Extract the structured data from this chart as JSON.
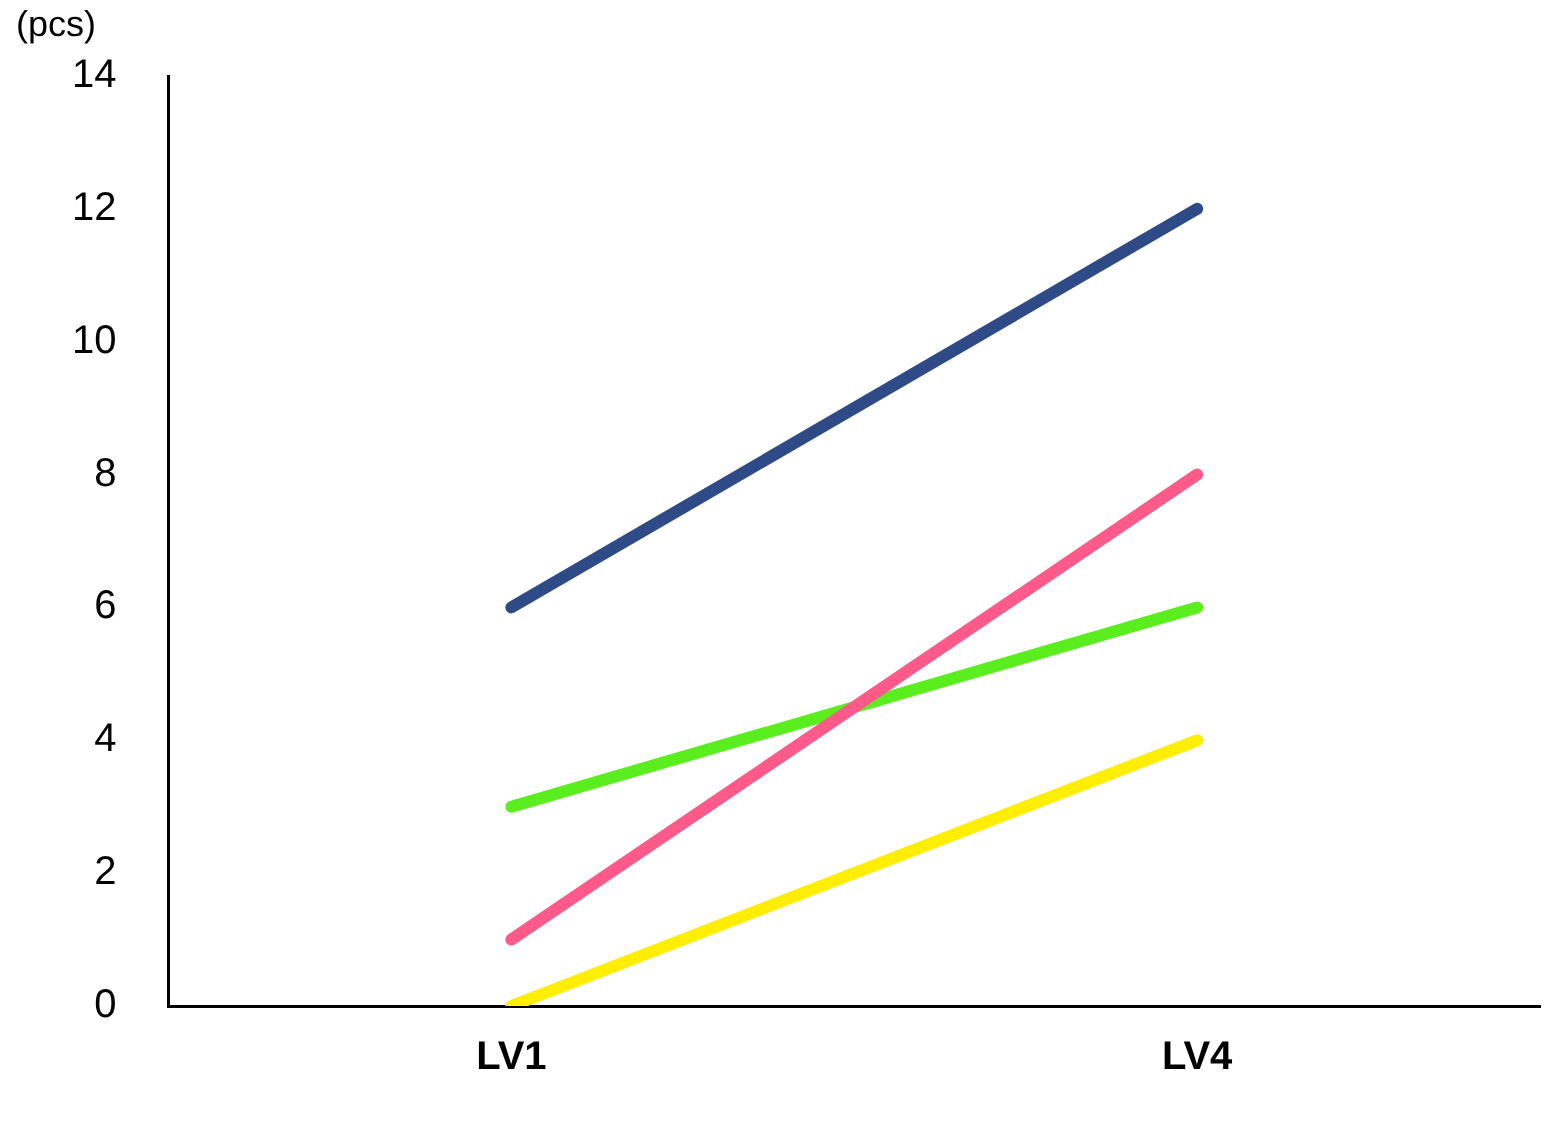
{
  "chart_data": {
    "type": "line",
    "ylabel": "(pcs)",
    "categories": [
      "LV1",
      "LV4"
    ],
    "series": [
      {
        "color": "#2e4a87",
        "values": [
          6,
          12
        ]
      },
      {
        "color": "#ff5a8a",
        "values": [
          1,
          8
        ]
      },
      {
        "color": "#5aee1f",
        "values": [
          3,
          6
        ]
      },
      {
        "color": "#ffee00",
        "values": [
          0,
          4
        ]
      }
    ],
    "ylim": [
      0,
      14
    ],
    "yticks": [
      0,
      2,
      4,
      6,
      8,
      10,
      12,
      14
    ],
    "grid": false,
    "legend": false,
    "marker": "none",
    "line_style": "solid"
  }
}
